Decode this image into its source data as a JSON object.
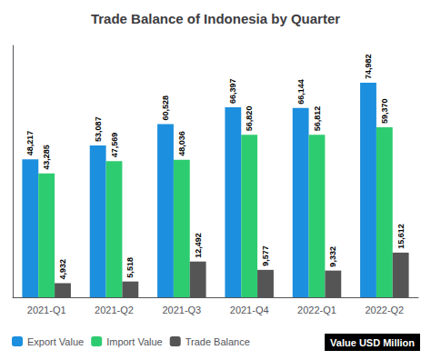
{
  "chart_data": {
    "type": "bar",
    "title": "Trade Balance of Indonesia by Quarter",
    "categories": [
      "2021-Q1",
      "2021-Q2",
      "2021-Q3",
      "2021-Q4",
      "2022-Q1",
      "2022-Q2"
    ],
    "series": [
      {
        "name": "Export Value",
        "color": "#1c8fde",
        "values": [
          48217,
          53087,
          60528,
          66397,
          66144,
          74982
        ],
        "value_labels": [
          "48,217",
          "53,087",
          "60,528",
          "66,397",
          "66,144",
          "74,982"
        ]
      },
      {
        "name": "Import Value",
        "color": "#2ecc71",
        "values": [
          43285,
          47569,
          48036,
          56820,
          56812,
          59370
        ],
        "value_labels": [
          "43,285",
          "47,569",
          "48,036",
          "56,820",
          "56,812",
          "59,370"
        ]
      },
      {
        "name": "Trade Balance",
        "color": "#555555",
        "values": [
          4932,
          5518,
          12492,
          9577,
          9332,
          15612
        ],
        "value_labels": [
          "4,932",
          "5,518",
          "12,492",
          "9,577",
          "9,332",
          "15,612"
        ]
      }
    ],
    "ylim": [
      0,
      88000
    ],
    "tick_labels": "x",
    "grid": false,
    "data_labels": true,
    "legend": "lower left",
    "annotations": [
      "Value USD Million"
    ]
  }
}
